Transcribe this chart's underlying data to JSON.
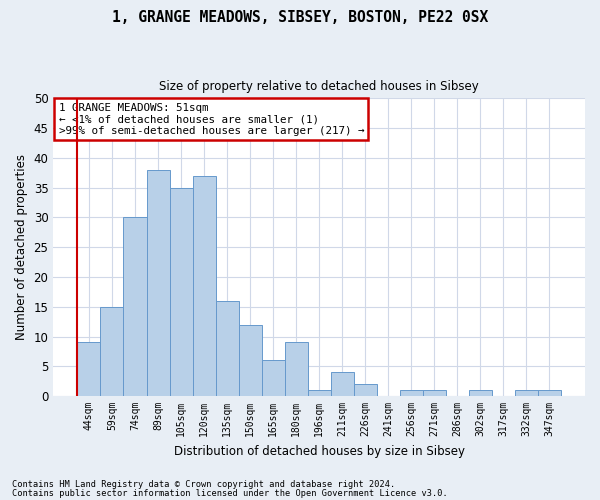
{
  "title": "1, GRANGE MEADOWS, SIBSEY, BOSTON, PE22 0SX",
  "subtitle": "Size of property relative to detached houses in Sibsey",
  "xlabel": "Distribution of detached houses by size in Sibsey",
  "ylabel": "Number of detached properties",
  "categories": [
    "44sqm",
    "59sqm",
    "74sqm",
    "89sqm",
    "105sqm",
    "120sqm",
    "135sqm",
    "150sqm",
    "165sqm",
    "180sqm",
    "196sqm",
    "211sqm",
    "226sqm",
    "241sqm",
    "256sqm",
    "271sqm",
    "286sqm",
    "302sqm",
    "317sqm",
    "332sqm",
    "347sqm"
  ],
  "values": [
    9,
    15,
    30,
    38,
    35,
    37,
    16,
    12,
    6,
    9,
    1,
    4,
    2,
    0,
    1,
    1,
    0,
    1,
    0,
    1,
    1
  ],
  "bar_color": "#b8d0e8",
  "bar_edge_color": "#6699cc",
  "ylim": [
    0,
    50
  ],
  "yticks": [
    0,
    5,
    10,
    15,
    20,
    25,
    30,
    35,
    40,
    45,
    50
  ],
  "annotation_text": "1 GRANGE MEADOWS: 51sqm\n← <1% of detached houses are smaller (1)\n>99% of semi-detached houses are larger (217) →",
  "annotation_box_color": "#ffffff",
  "annotation_box_edge_color": "#cc0000",
  "marker_line_color": "#cc0000",
  "footer_line1": "Contains HM Land Registry data © Crown copyright and database right 2024.",
  "footer_line2": "Contains public sector information licensed under the Open Government Licence v3.0.",
  "fig_background_color": "#e8eef5",
  "plot_background_color": "#ffffff",
  "grid_color": "#d0d8e8"
}
